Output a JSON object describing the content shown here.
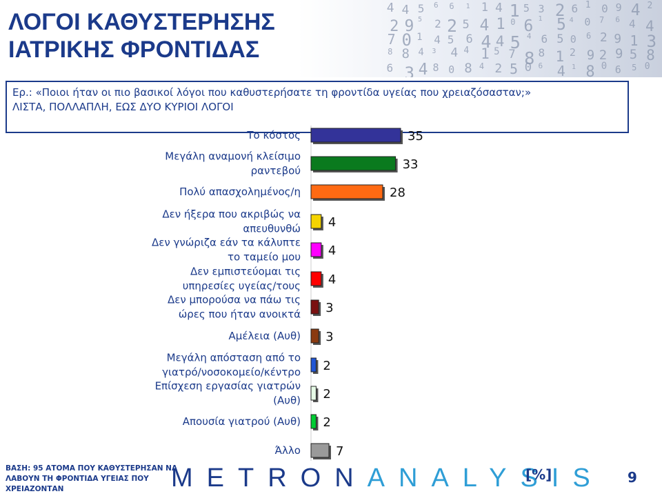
{
  "title_lines": [
    "ΛΟΓΟΙ ΚΑΘΥΣΤΕΡΗΣΗΣ",
    "ΙΑΤΡΙΚΗΣ ΦΡΟΝΤΙΔΑΣ"
  ],
  "question": {
    "line1": "Ερ.: «Ποιοι ήταν οι πιο βασικοί λόγοι που καθυστερήσατε τη φροντίδα υγείας που χρειαζόσασταν;»",
    "line2": "ΛΙΣΤΑ, ΠΟΛΛΑΠΛΗ, ΕΩΣ ΔΥΟ ΚΥΡΙΟΙ ΛΟΓΟΙ"
  },
  "chart_data": {
    "type": "bar",
    "orientation": "horizontal",
    "categories": [
      [
        "Το κόστος"
      ],
      [
        "Μεγάλη αναμονή κλείσιμο",
        "ραντεβού"
      ],
      [
        "Πολύ απασχολημένος/η"
      ],
      [
        "Δεν ήξερα που ακριβώς να",
        "απευθυνθώ"
      ],
      [
        "Δεν γνώριζα εάν τα κάλυπτε",
        "το ταμείο μου"
      ],
      [
        "Δεν εμπιστεύομαι τις",
        "υπηρεσίες υγείας/τους"
      ],
      [
        "Δεν μπορούσα να πάω τις",
        "ώρες που ήταν ανοικτά"
      ],
      [
        "Αμέλεια (Αυθ)"
      ],
      [
        "Μεγάλη απόσταση από το",
        "γιατρό/νοσοκομείο/κέντρο"
      ],
      [
        "Επίσχεση εργασίας γιατρών",
        "(Αυθ)"
      ],
      [
        "Απουσία γιατρού (Αυθ)"
      ],
      [
        "Άλλο"
      ]
    ],
    "values": [
      35,
      33,
      28,
      4,
      4,
      4,
      3,
      3,
      2,
      2,
      2,
      7
    ],
    "data_labels": [
      "35",
      "33",
      "28",
      "4",
      "4",
      "4",
      "3",
      "3",
      "2",
      "2",
      "2",
      "7"
    ],
    "colors": [
      "#333399",
      "#0a7a1e",
      "#ff6a13",
      "#f5d400",
      "#ff00ff",
      "#ff0000",
      "#7a1010",
      "#8a3a10",
      "#2156d4",
      "#e6fbe6",
      "#00cc33",
      "#9a9a9a"
    ],
    "xlim": [
      0,
      35
    ]
  },
  "footer": {
    "base": "ΒΑΣΗ: 95 ΑΤΟΜΑ ΠΟΥ ΚΑΘΥΣΤΕΡΗΣΑΝ ΝΑ ΛΑΒΟΥΝ ΤΗ ΦΡΟΝΤΙΔΑ ΥΓΕΙΑΣ ΠΟΥ ΧΡΕΙΑΖΟΝΤΑΝ",
    "logo_part1": "METRON",
    "logo_part2": "ANALYSIS",
    "unit": "[%]",
    "page": "9"
  }
}
